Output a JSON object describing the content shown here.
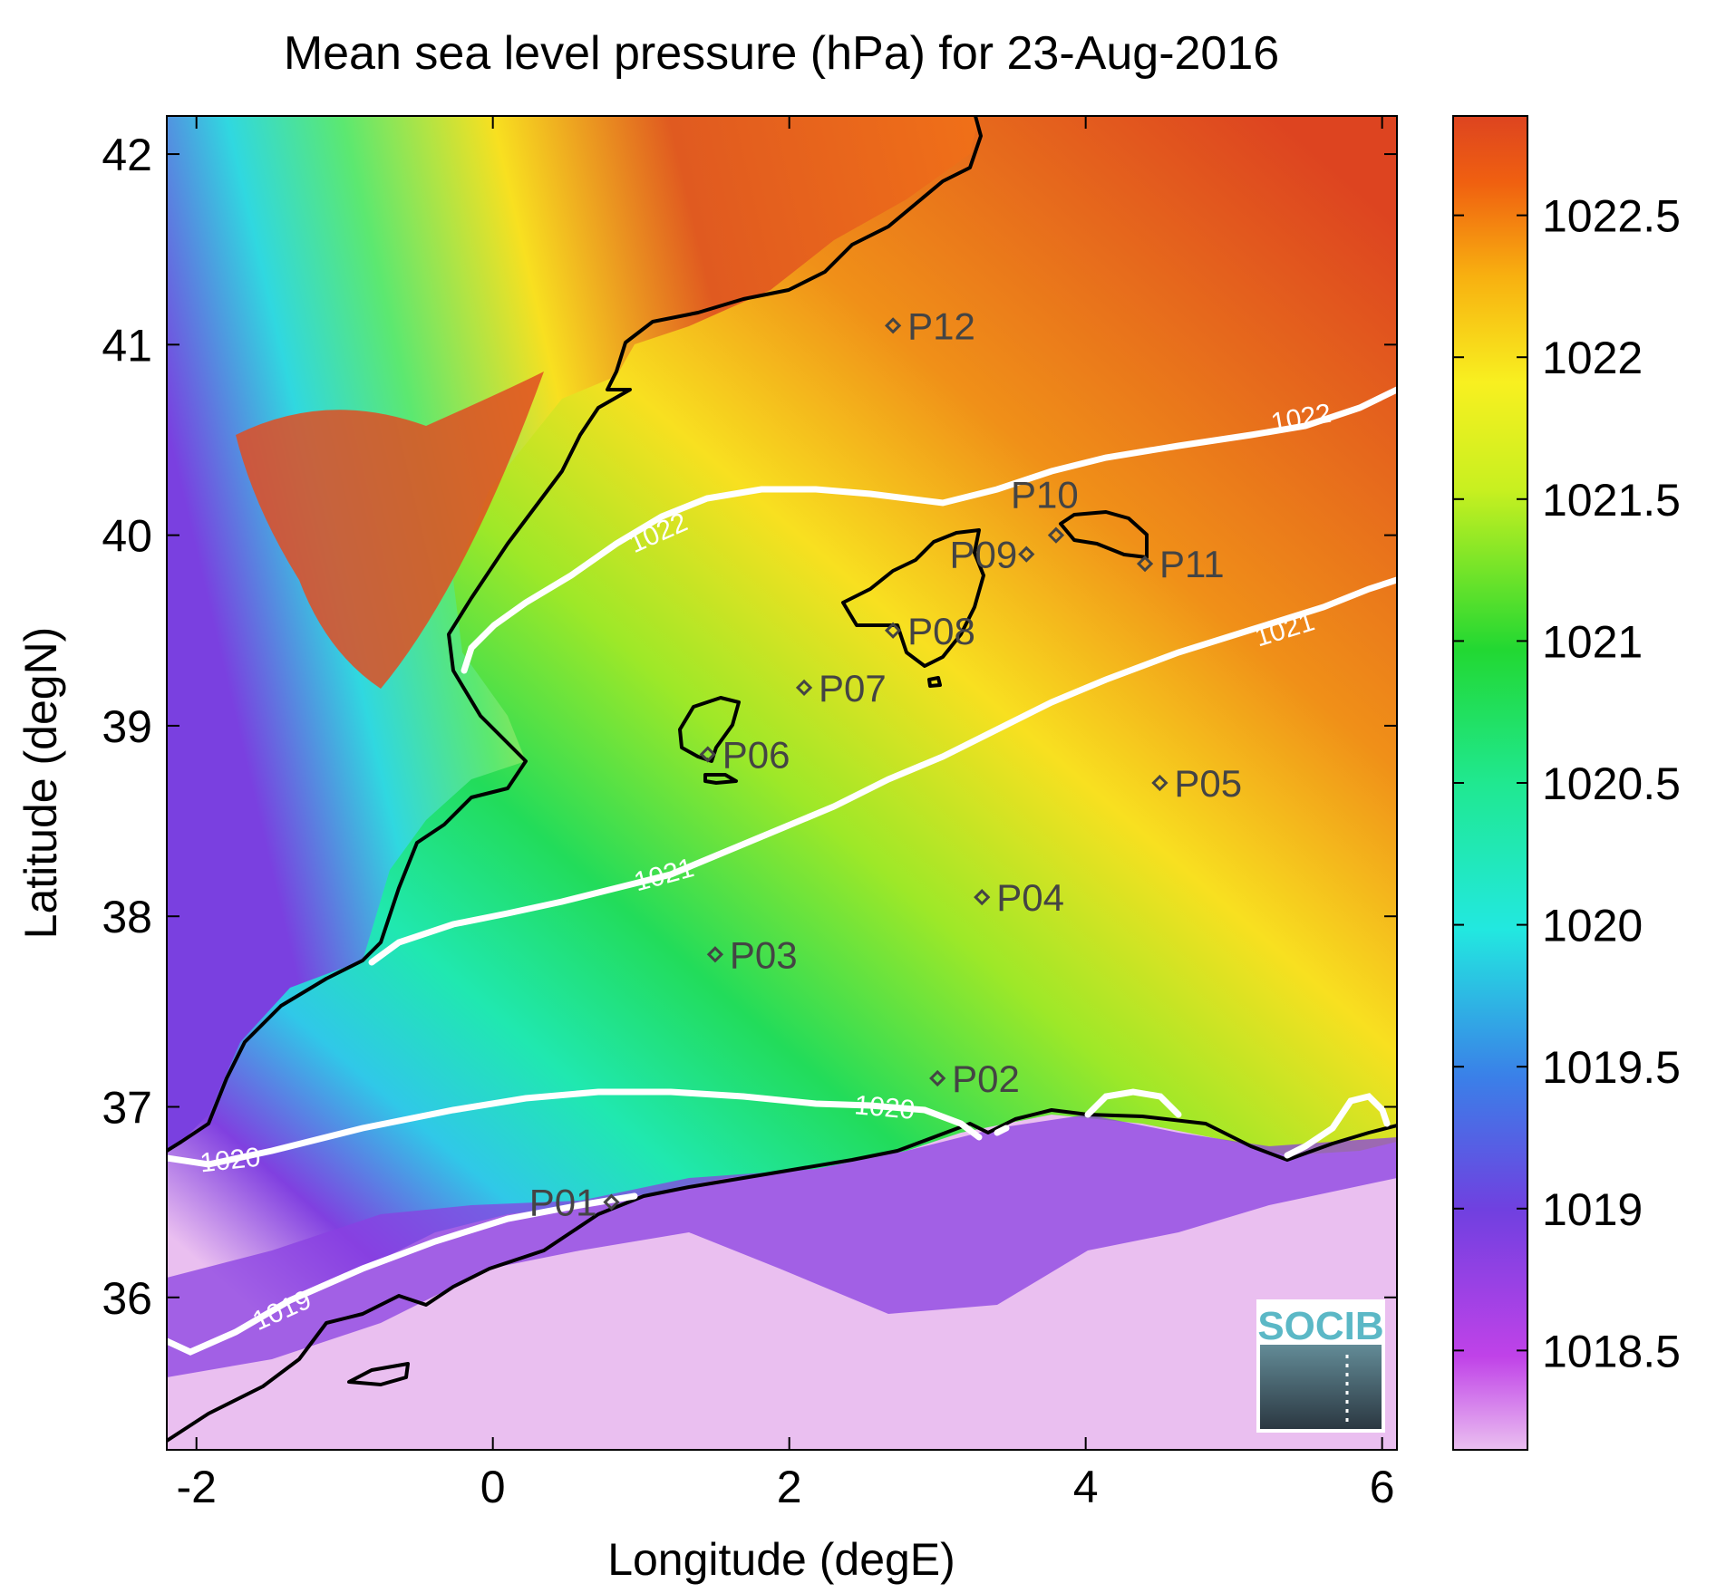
{
  "title": "Mean sea level pressure (hPa) for 23-Aug-2016",
  "xlabel": "Longitude (degE)",
  "ylabel": "Latitude (degN)",
  "x_ticks": [
    "-2",
    "0",
    "2",
    "4",
    "6"
  ],
  "y_ticks": [
    "36",
    "37",
    "38",
    "39",
    "40",
    "41",
    "42"
  ],
  "colorbar": {
    "ticks": [
      "1018.5",
      "1019",
      "1019.5",
      "1020",
      "1020.5",
      "1021",
      "1021.5",
      "1022",
      "1022.5"
    ],
    "range": [
      1018.15,
      1022.85
    ]
  },
  "colors": {
    "low": "#eabff0",
    "high": "#dd4420",
    "contour": "#ffffff",
    "coast": "#000000"
  },
  "contours": [
    {
      "label": "1019"
    },
    {
      "label": "1020"
    },
    {
      "label": "1021"
    },
    {
      "label": "1022"
    }
  ],
  "stations": [
    {
      "label": "P01"
    },
    {
      "label": "P02"
    },
    {
      "label": "P03"
    },
    {
      "label": "P04"
    },
    {
      "label": "P05"
    },
    {
      "label": "P06"
    },
    {
      "label": "P07"
    },
    {
      "label": "P08"
    },
    {
      "label": "P09"
    },
    {
      "label": "P10"
    },
    {
      "label": "P11"
    },
    {
      "label": "P12"
    }
  ],
  "logo": {
    "text": "SOCIB"
  },
  "chart_data": {
    "type": "heatmap",
    "title": "Mean sea level pressure (hPa) for 23-Aug-2016",
    "xlabel": "Longitude (degE)",
    "ylabel": "Latitude (degN)",
    "xlim": [
      -2.2,
      6.1
    ],
    "ylim": [
      35.2,
      42.2
    ],
    "clim": [
      1018.15,
      1022.85
    ],
    "contour_levels": [
      1019,
      1020,
      1021,
      1022
    ],
    "stations": [
      {
        "name": "P01",
        "lon": 0.8,
        "lat": 36.5
      },
      {
        "name": "P02",
        "lon": 3.0,
        "lat": 37.15
      },
      {
        "name": "P03",
        "lon": 1.5,
        "lat": 37.8
      },
      {
        "name": "P04",
        "lon": 3.3,
        "lat": 38.1
      },
      {
        "name": "P05",
        "lon": 4.5,
        "lat": 38.7
      },
      {
        "name": "P06",
        "lon": 1.45,
        "lat": 38.85
      },
      {
        "name": "P07",
        "lon": 2.1,
        "lat": 39.2
      },
      {
        "name": "P08",
        "lon": 2.7,
        "lat": 39.5
      },
      {
        "name": "P09",
        "lon": 3.6,
        "lat": 39.9
      },
      {
        "name": "P10",
        "lon": 3.8,
        "lat": 40.0
      },
      {
        "name": "P11",
        "lon": 4.4,
        "lat": 39.85
      },
      {
        "name": "P12",
        "lon": 2.7,
        "lat": 41.1
      }
    ]
  }
}
